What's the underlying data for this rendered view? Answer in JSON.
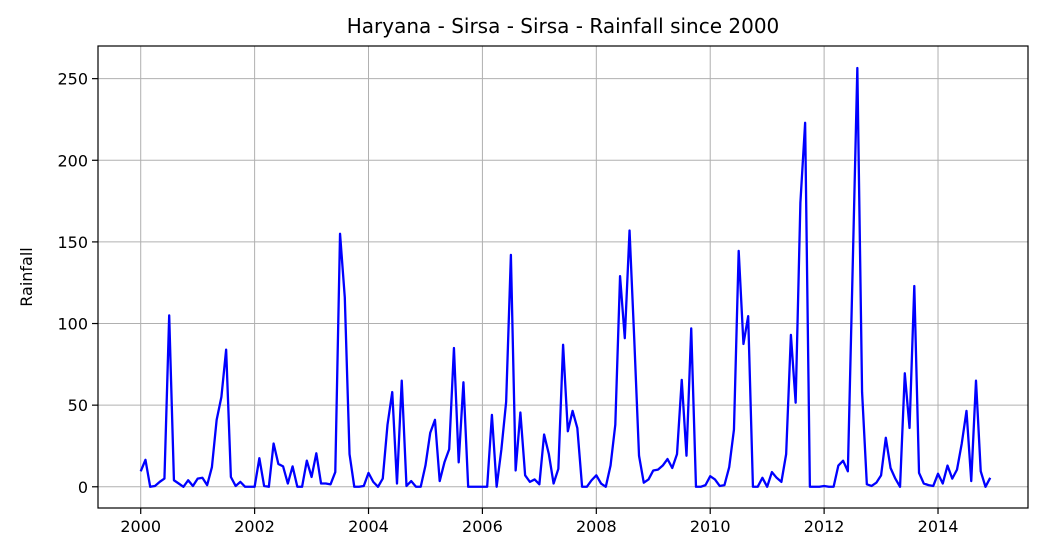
{
  "chart_data": {
    "type": "line",
    "title": "Haryana - Sirsa - Sirsa - Rainfall since 2000",
    "xlabel": "",
    "ylabel": "Rainfall",
    "xlim": [
      1999.25,
      2015.58
    ],
    "ylim": [
      -13,
      270
    ],
    "grid": true,
    "x_ticks": [
      2000,
      2002,
      2004,
      2006,
      2008,
      2010,
      2012,
      2014
    ],
    "x_tick_labels": [
      "2000",
      "2002",
      "2004",
      "2006",
      "2008",
      "2010",
      "2012",
      "2014"
    ],
    "y_ticks": [
      0,
      50,
      100,
      150,
      200,
      250
    ],
    "y_tick_labels": [
      "0",
      "50",
      "100",
      "150",
      "200",
      "250"
    ],
    "series": [
      {
        "color": "#0000ff",
        "start_year": 2000,
        "values": [
          9.5,
          16.5,
          0,
          0.5,
          3,
          5,
          105,
          4,
          2,
          0,
          4,
          0.5,
          5,
          5.5,
          1,
          12,
          41,
          55,
          84,
          6,
          0.5,
          3,
          0,
          0,
          0,
          17.5,
          0.5,
          0,
          26.5,
          14,
          12.5,
          2,
          12.5,
          0,
          0,
          16,
          6,
          20.5,
          2,
          2,
          1.5,
          9,
          155,
          116,
          20,
          0,
          0,
          0.5,
          8.5,
          3,
          0,
          5,
          38,
          58,
          2,
          65,
          0.5,
          3.5,
          0,
          0,
          13,
          33,
          41,
          3.5,
          15,
          23,
          85,
          15,
          64,
          0,
          0,
          0,
          0,
          0,
          44,
          0,
          23,
          52,
          142,
          10,
          45.5,
          7,
          3,
          4.5,
          1.5,
          32,
          20,
          2,
          11,
          87,
          34,
          46.5,
          36,
          0,
          0,
          4,
          7,
          2,
          0,
          13,
          38,
          129,
          91,
          157,
          90,
          19,
          2.5,
          4.5,
          10,
          10.5,
          13,
          17,
          11.5,
          20,
          65.5,
          19,
          97,
          0,
          0,
          1,
          6.5,
          4.5,
          0.5,
          1,
          12,
          35,
          144.5,
          87.5,
          104.5,
          0,
          0,
          5.5,
          0,
          9,
          5.5,
          3,
          20,
          93,
          51.5,
          174,
          223,
          0,
          0,
          0,
          0.5,
          0,
          0,
          13,
          16,
          9.5,
          132,
          256.5,
          58,
          1.5,
          0.5,
          2.5,
          7,
          30,
          11.5,
          5,
          0,
          69.5,
          36,
          123,
          8.5,
          2,
          1,
          0.5,
          8,
          2,
          13,
          5,
          10.5,
          26.5,
          46.5,
          3.5,
          65,
          9.5,
          0,
          5.5
        ]
      }
    ]
  }
}
